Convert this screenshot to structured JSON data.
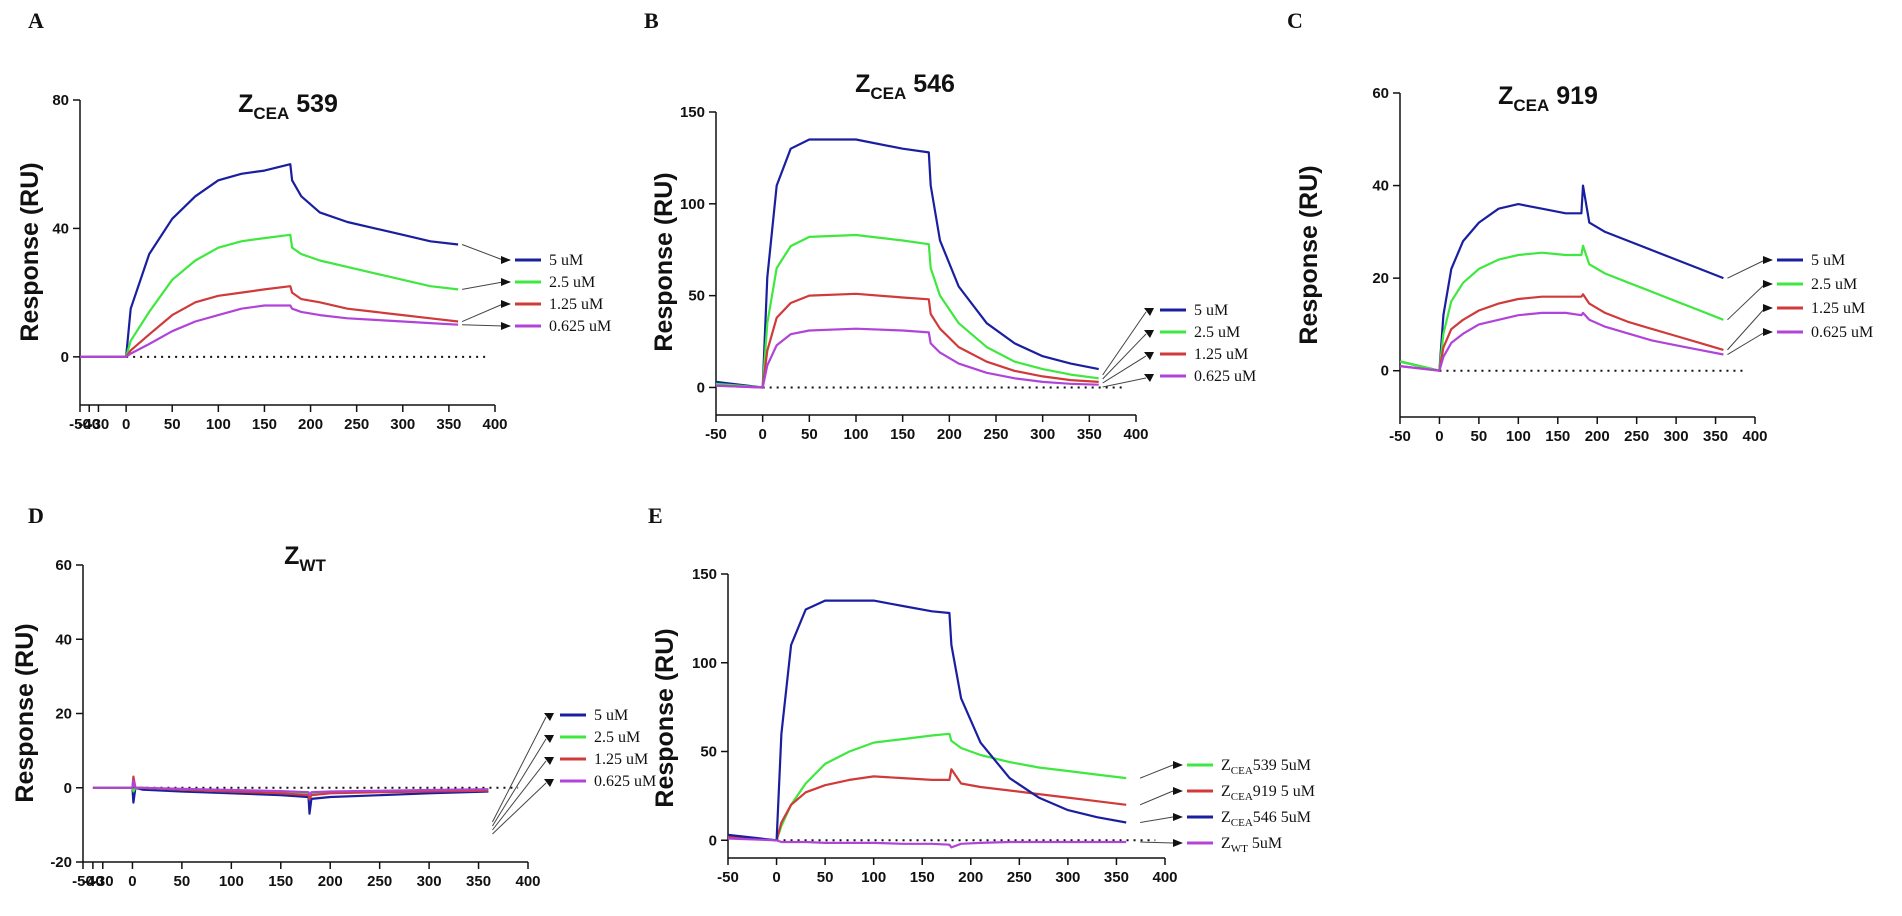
{
  "panels": [
    {
      "letter": "A",
      "title_main": "Z",
      "title_sub": "CEA",
      "title_rest": " 539",
      "ylabel": "Response  (RU)",
      "xlim": [
        -50,
        400
      ],
      "ylim": [
        -15,
        80
      ],
      "xticks": [
        -50,
        -40,
        -30,
        0,
        50,
        100,
        150,
        200,
        250,
        300,
        350,
        400
      ],
      "xtick_labels": [
        "-50",
        "-40",
        "-30",
        "0",
        "50",
        "100",
        "150",
        "200",
        "250",
        "300",
        "350",
        "400"
      ],
      "yticks": [
        0,
        40,
        80
      ],
      "legend": [
        {
          "label": "5 uM",
          "color": "#1a1fa0"
        },
        {
          "label": "2.5 uM",
          "color": "#3ee83e"
        },
        {
          "label": "1.25 uM",
          "color": "#d03a3a"
        },
        {
          "label": "0.625 uM",
          "color": "#b044d8"
        }
      ]
    },
    {
      "letter": "B",
      "title_main": "Z",
      "title_sub": "CEA",
      "title_rest": " 546",
      "ylabel": "Response  (RU)",
      "xlim": [
        -50,
        400
      ],
      "ylim": [
        -15,
        150
      ],
      "xticks": [
        -50,
        0,
        50,
        100,
        150,
        200,
        250,
        300,
        350,
        400
      ],
      "xtick_labels": [
        "-50",
        "0",
        "50",
        "100",
        "150",
        "200",
        "250",
        "300",
        "350",
        "400"
      ],
      "yticks": [
        0,
        50,
        100,
        150
      ],
      "legend": [
        {
          "label": "5 uM",
          "color": "#1a1fa0"
        },
        {
          "label": "2.5 uM",
          "color": "#3ee83e"
        },
        {
          "label": "1.25 uM",
          "color": "#d03a3a"
        },
        {
          "label": "0.625 uM",
          "color": "#b044d8"
        }
      ]
    },
    {
      "letter": "C",
      "title_main": "Z",
      "title_sub": "CEA",
      "title_rest": " 919",
      "ylabel": "Response  (RU)",
      "xlim": [
        -50,
        400
      ],
      "ylim": [
        -10,
        60
      ],
      "xticks": [
        -50,
        0,
        50,
        100,
        150,
        200,
        250,
        300,
        350,
        400
      ],
      "xtick_labels": [
        "-50",
        "0",
        "50",
        "100",
        "150",
        "200",
        "250",
        "300",
        "350",
        "400"
      ],
      "yticks": [
        0,
        20,
        40,
        60
      ],
      "legend": [
        {
          "label": "5 uM",
          "color": "#1a1fa0"
        },
        {
          "label": "2.5 uM",
          "color": "#3ee83e"
        },
        {
          "label": "1.25 uM",
          "color": "#d03a3a"
        },
        {
          "label": "0.625 uM",
          "color": "#b044d8"
        }
      ]
    },
    {
      "letter": "D",
      "title_main": "Z",
      "title_sub": "WT",
      "title_rest": "",
      "ylabel": "Response  (RU)",
      "xlim": [
        -50,
        400
      ],
      "ylim": [
        -20,
        60
      ],
      "xticks": [
        -50,
        -40,
        -30,
        0,
        50,
        100,
        150,
        200,
        250,
        300,
        350,
        400
      ],
      "xtick_labels": [
        "-50",
        "-40",
        "-30",
        "0",
        "50",
        "100",
        "150",
        "200",
        "250",
        "300",
        "350",
        "400"
      ],
      "yticks": [
        -20,
        0,
        20,
        40,
        60
      ],
      "legend": [
        {
          "label": "5 uM",
          "color": "#1a1fa0"
        },
        {
          "label": "2.5 uM",
          "color": "#3ee83e"
        },
        {
          "label": "1.25 uM",
          "color": "#d03a3a"
        },
        {
          "label": "0.625 uM",
          "color": "#b044d8"
        }
      ]
    },
    {
      "letter": "E",
      "title_main": "",
      "title_sub": "",
      "title_rest": "",
      "ylabel": "Response  (RU)",
      "xlim": [
        -50,
        400
      ],
      "ylim": [
        -10,
        150
      ],
      "xticks": [
        -50,
        0,
        50,
        100,
        150,
        200,
        250,
        300,
        350,
        400
      ],
      "xtick_labels": [
        "-50",
        "0",
        "50",
        "100",
        "150",
        "200",
        "250",
        "300",
        "350",
        "400"
      ],
      "yticks": [
        0,
        50,
        100,
        150
      ],
      "legend": [
        {
          "main": "Z",
          "sub": "CEA",
          "rest": "539 5uM",
          "color": "#3ee83e"
        },
        {
          "main": "Z",
          "sub": "CEA",
          "rest": "919 5 uM",
          "color": "#d03a3a"
        },
        {
          "main": "Z",
          "sub": "CEA",
          "rest": "546 5uM",
          "color": "#1a1fa0"
        },
        {
          "main": "Z",
          "sub": "WT",
          "rest": " 5uM",
          "color": "#b044d8"
        }
      ]
    }
  ],
  "chart_data": [
    {
      "type": "line",
      "panel": "A",
      "title": "ZCEA 539",
      "xlabel": "",
      "ylabel": "Response (RU)",
      "xlim": [
        -50,
        400
      ],
      "ylim": [
        -15,
        80
      ],
      "x": [
        -50,
        0,
        5,
        25,
        50,
        75,
        100,
        125,
        150,
        178,
        180,
        190,
        210,
        240,
        270,
        300,
        330,
        360
      ],
      "series": [
        {
          "name": "5 uM",
          "color": "#1a1fa0",
          "values": [
            0,
            0,
            15,
            32,
            43,
            50,
            55,
            57,
            58,
            60,
            55,
            50,
            45,
            42,
            40,
            38,
            36,
            35
          ]
        },
        {
          "name": "2.5 uM",
          "color": "#3ee83e",
          "values": [
            0,
            0,
            5,
            14,
            24,
            30,
            34,
            36,
            37,
            38,
            34,
            32,
            30,
            28,
            26,
            24,
            22,
            21
          ]
        },
        {
          "name": "1.25 uM",
          "color": "#d03a3a",
          "values": [
            0,
            0,
            2,
            7,
            13,
            17,
            19,
            20,
            21,
            22,
            20,
            18,
            17,
            15,
            14,
            13,
            12,
            11
          ]
        },
        {
          "name": "0.625 uM",
          "color": "#b044d8",
          "values": [
            0,
            0,
            1,
            4,
            8,
            11,
            13,
            15,
            16,
            16,
            15,
            14,
            13,
            12,
            11.5,
            11,
            10.5,
            10
          ]
        }
      ]
    },
    {
      "type": "line",
      "panel": "B",
      "title": "ZCEA 546",
      "xlabel": "",
      "ylabel": "Response (RU)",
      "xlim": [
        -50,
        400
      ],
      "ylim": [
        -15,
        150
      ],
      "x": [
        -50,
        0,
        5,
        15,
        30,
        50,
        100,
        150,
        178,
        180,
        190,
        210,
        240,
        270,
        300,
        330,
        360
      ],
      "series": [
        {
          "name": "5 uM",
          "color": "#1a1fa0",
          "values": [
            3,
            0,
            60,
            110,
            130,
            135,
            135,
            130,
            128,
            110,
            80,
            55,
            35,
            24,
            17,
            13,
            10
          ]
        },
        {
          "name": "2.5 uM",
          "color": "#3ee83e",
          "values": [
            2,
            0,
            35,
            65,
            77,
            82,
            83,
            80,
            78,
            65,
            50,
            35,
            22,
            14,
            10,
            7,
            5
          ]
        },
        {
          "name": "1.25 uM",
          "color": "#d03a3a",
          "values": [
            1,
            0,
            20,
            38,
            46,
            50,
            51,
            49,
            48,
            40,
            32,
            22,
            14,
            9,
            6,
            4,
            3
          ]
        },
        {
          "name": "0.625 uM",
          "color": "#b044d8",
          "values": [
            1,
            0,
            12,
            23,
            29,
            31,
            32,
            31,
            30,
            24,
            19,
            13,
            8,
            5,
            3,
            2,
            1.5
          ]
        }
      ]
    },
    {
      "type": "line",
      "panel": "C",
      "title": "ZCEA 919",
      "xlabel": "",
      "ylabel": "Response (RU)",
      "xlim": [
        -50,
        400
      ],
      "ylim": [
        -10,
        60
      ],
      "x": [
        -50,
        0,
        5,
        15,
        30,
        50,
        75,
        100,
        130,
        160,
        180,
        182,
        190,
        210,
        240,
        270,
        300,
        330,
        360
      ],
      "series": [
        {
          "name": "5 uM",
          "color": "#1a1fa0",
          "values": [
            2,
            0,
            12,
            22,
            28,
            32,
            35,
            36,
            35,
            34,
            34,
            40,
            32,
            30,
            28,
            26,
            24,
            22,
            20
          ]
        },
        {
          "name": "2.5 uM",
          "color": "#3ee83e",
          "values": [
            2,
            0,
            8,
            15,
            19,
            22,
            24,
            25,
            25.5,
            25,
            25,
            27,
            23,
            21,
            19,
            17,
            15,
            13,
            11
          ]
        },
        {
          "name": "1.25 uM",
          "color": "#d03a3a",
          "values": [
            1,
            0,
            5,
            9,
            11,
            13,
            14.5,
            15.5,
            16,
            16,
            16,
            16.5,
            14.5,
            12.5,
            10.5,
            9,
            7.5,
            6,
            4.5
          ]
        },
        {
          "name": "0.625 uM",
          "color": "#b044d8",
          "values": [
            1,
            0,
            3,
            6,
            8,
            10,
            11,
            12,
            12.5,
            12.5,
            12,
            12.5,
            11,
            9.5,
            8,
            6.5,
            5.5,
            4.5,
            3.5
          ]
        }
      ]
    },
    {
      "type": "line",
      "panel": "D",
      "title": "ZWT",
      "xlabel": "",
      "ylabel": "Response (RU)",
      "xlim": [
        -50,
        400
      ],
      "ylim": [
        -20,
        60
      ],
      "x": [
        -40,
        -30,
        0,
        1,
        3,
        10,
        50,
        100,
        150,
        178,
        179,
        181,
        200,
        250,
        300,
        360
      ],
      "series": [
        {
          "name": "5 uM",
          "color": "#1a1fa0",
          "values": [
            0,
            0,
            0,
            -4,
            0,
            -0.5,
            -1,
            -1.5,
            -2,
            -2.5,
            -7,
            -3,
            -2.5,
            -2,
            -1.5,
            -1
          ]
        },
        {
          "name": "2.5 uM",
          "color": "#3ee83e",
          "values": [
            0,
            0,
            0,
            -1,
            0,
            0,
            -0.5,
            -1,
            -1.2,
            -1.5,
            -3,
            -1.5,
            -1.2,
            -1,
            -0.8,
            -0.5
          ]
        },
        {
          "name": "1.25 uM",
          "color": "#d03a3a",
          "values": [
            0,
            0,
            0,
            3,
            0,
            0,
            -0.5,
            -1,
            -1.5,
            -2,
            -3,
            -2,
            -1.5,
            -1.2,
            -1,
            -0.8
          ]
        },
        {
          "name": "0.625 uM",
          "color": "#b044d8",
          "values": [
            0,
            0,
            0,
            2,
            0,
            0,
            -0.3,
            -0.6,
            -0.9,
            -1.2,
            -2,
            -1.2,
            -1,
            -0.8,
            -0.6,
            -0.4
          ]
        }
      ]
    },
    {
      "type": "line",
      "panel": "E",
      "title": "",
      "xlabel": "",
      "ylabel": "Response (RU)",
      "xlim": [
        -50,
        400
      ],
      "ylim": [
        -10,
        150
      ],
      "x": [
        -50,
        0,
        5,
        15,
        30,
        50,
        75,
        100,
        130,
        160,
        178,
        180,
        190,
        210,
        240,
        270,
        300,
        330,
        360
      ],
      "series": [
        {
          "name": "ZCEA539 5uM",
          "color": "#3ee83e",
          "values": [
            2,
            0,
            8,
            20,
            32,
            43,
            50,
            55,
            57,
            59,
            60,
            56,
            52,
            48,
            44,
            41,
            39,
            37,
            35
          ]
        },
        {
          "name": "ZCEA919 5 uM",
          "color": "#d03a3a",
          "values": [
            2,
            0,
            10,
            20,
            27,
            31,
            34,
            36,
            35,
            34,
            34,
            40,
            32,
            30,
            28,
            26,
            24,
            22,
            20
          ]
        },
        {
          "name": "ZCEA546 5uM",
          "color": "#1a1fa0",
          "values": [
            3,
            0,
            60,
            110,
            130,
            135,
            135,
            135,
            132,
            129,
            128,
            110,
            80,
            55,
            35,
            24,
            17,
            13,
            10
          ]
        },
        {
          "name": "ZWT 5uM",
          "color": "#b044d8",
          "values": [
            1,
            0,
            -1,
            -1,
            -1,
            -1.5,
            -1.5,
            -1.5,
            -2,
            -2,
            -2.5,
            -4,
            -2,
            -1.5,
            -1,
            -1,
            -1,
            -1,
            -1
          ]
        }
      ]
    }
  ]
}
